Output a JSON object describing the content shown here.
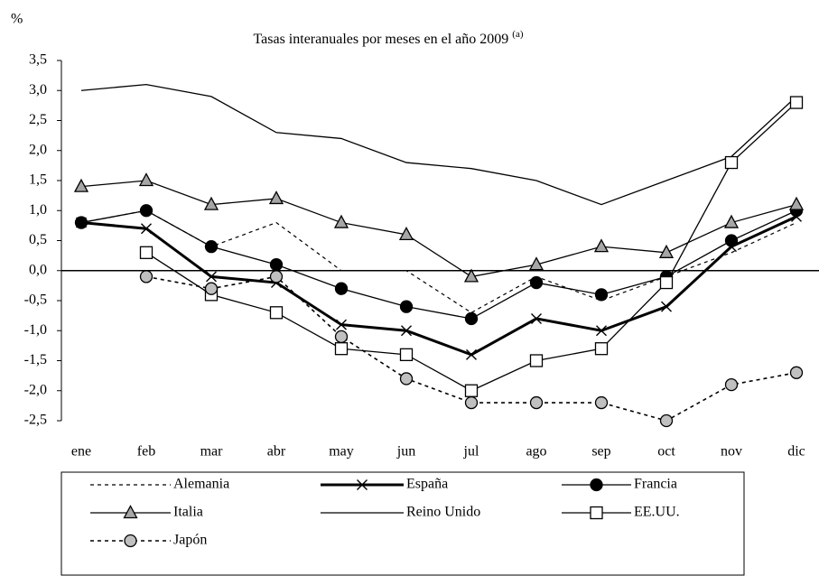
{
  "chart_data": {
    "type": "line",
    "title": "Tasas interanuales por meses en el año 2009",
    "title_note": "(a)",
    "y_label": "%",
    "categories": [
      "ene",
      "feb",
      "mar",
      "abr",
      "may",
      "jun",
      "jul",
      "ago",
      "sep",
      "oct",
      "nov",
      "dic"
    ],
    "ylim": [
      -2.5,
      3.5
    ],
    "yticks": [
      {
        "value": -2.5,
        "label": "-2,5"
      },
      {
        "value": -2,
        "label": "-2,0"
      },
      {
        "value": -1.5,
        "label": "-1,5"
      },
      {
        "value": -1,
        "label": "-1,0"
      },
      {
        "value": -0.5,
        "label": "-0,5"
      },
      {
        "value": 0,
        "label": "0,0"
      },
      {
        "value": 0.5,
        "label": "0,5"
      },
      {
        "value": 1,
        "label": "1,0"
      },
      {
        "value": 1.5,
        "label": "1,5"
      },
      {
        "value": 2,
        "label": "2,0"
      },
      {
        "value": 2.5,
        "label": "2,5"
      },
      {
        "value": 3,
        "label": "3,0"
      },
      {
        "value": 3.5,
        "label": "3,5"
      }
    ],
    "series": [
      {
        "name": "Alemania",
        "color": "#000000",
        "dashed": true,
        "line_width": 1.2,
        "marker": "none",
        "marker_fill": "#000000",
        "values": [
          0.8,
          1.0,
          0.4,
          0.8,
          0.0,
          0.0,
          -0.7,
          -0.1,
          -0.5,
          -0.1,
          0.3,
          0.8
        ]
      },
      {
        "name": "España",
        "color": "#000000",
        "dashed": false,
        "line_width": 3,
        "marker": "x",
        "marker_fill": "#000000",
        "values": [
          0.8,
          0.7,
          -0.1,
          -0.2,
          -0.9,
          -1.0,
          -1.4,
          -0.8,
          -1.0,
          -0.6,
          0.4,
          0.9
        ]
      },
      {
        "name": "Francia",
        "color": "#000000",
        "dashed": false,
        "line_width": 1.3,
        "marker": "circle",
        "marker_fill": "#000000",
        "values": [
          0.8,
          1.0,
          0.4,
          0.1,
          -0.3,
          -0.6,
          -0.8,
          -0.2,
          -0.4,
          -0.1,
          0.5,
          1.0
        ]
      },
      {
        "name": "Italia",
        "color": "#000000",
        "dashed": false,
        "line_width": 1.3,
        "marker": "triangle",
        "marker_fill": "#a6a6a6",
        "values": [
          1.4,
          1.5,
          1.1,
          1.2,
          0.8,
          0.6,
          -0.1,
          0.1,
          0.4,
          0.3,
          0.8,
          1.1
        ]
      },
      {
        "name": "Reino Unido",
        "color": "#000000",
        "dashed": false,
        "line_width": 1.3,
        "marker": "none",
        "marker_fill": "#000000",
        "values": [
          3.0,
          3.1,
          2.9,
          2.3,
          2.2,
          1.8,
          1.7,
          1.5,
          1.1,
          1.5,
          1.9,
          2.9
        ]
      },
      {
        "name": "EE.UU.",
        "color": "#000000",
        "dashed": false,
        "line_width": 1.3,
        "marker": "square",
        "marker_fill": "#ffffff",
        "values": [
          null,
          0.3,
          -0.4,
          -0.7,
          -1.3,
          -1.4,
          -2.0,
          -1.5,
          -1.3,
          -0.2,
          1.8,
          2.8
        ]
      },
      {
        "name": "Japón",
        "color": "#000000",
        "dashed": true,
        "line_width": 1.6,
        "marker": "circle",
        "marker_fill": "#c0c0c0",
        "values": [
          null,
          -0.1,
          -0.3,
          -0.1,
          -1.1,
          -1.8,
          -2.2,
          -2.2,
          -2.2,
          -2.5,
          -1.9,
          -1.7
        ]
      }
    ]
  }
}
